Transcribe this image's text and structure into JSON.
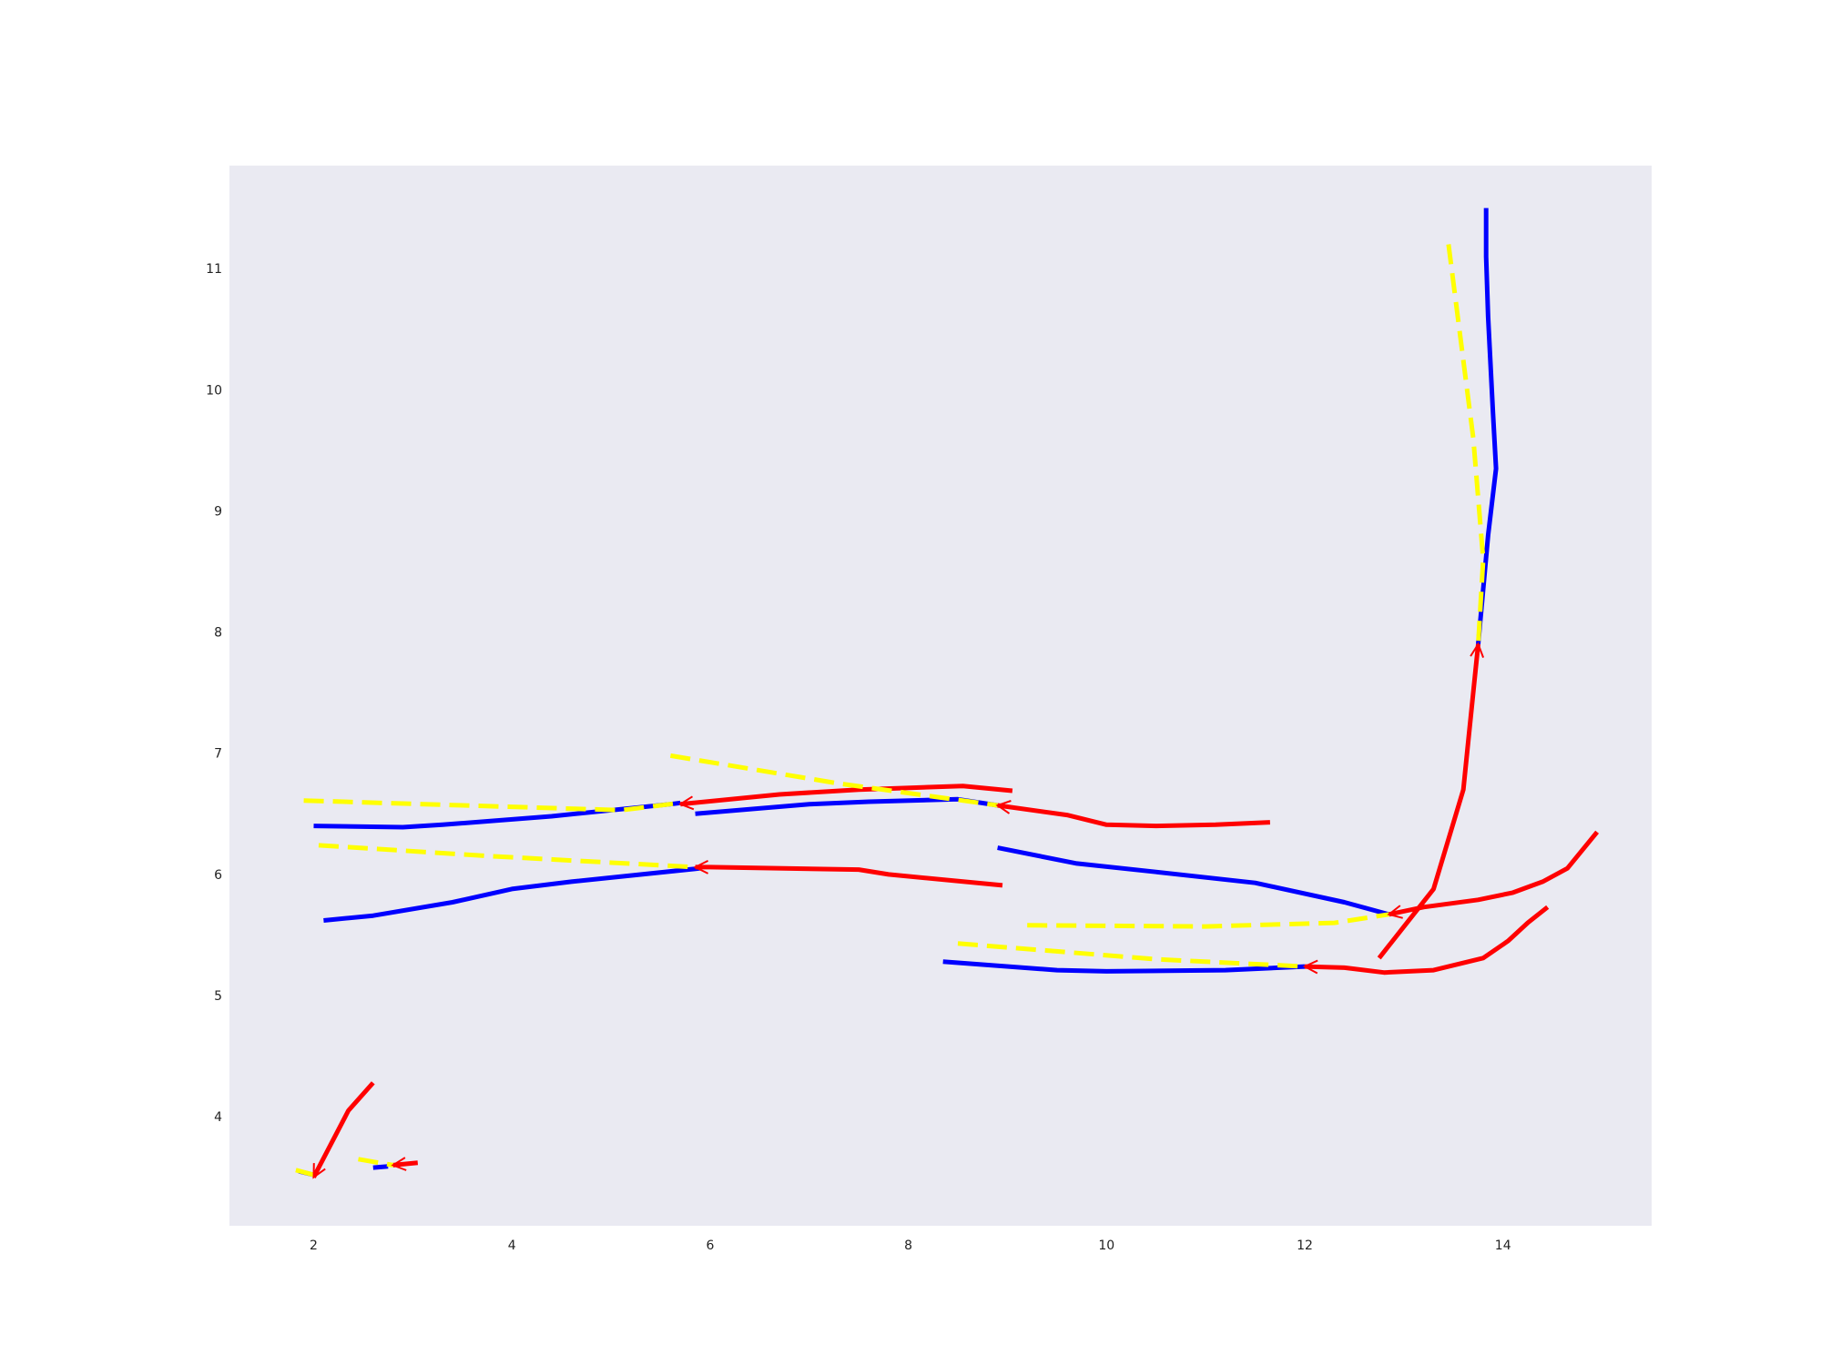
{
  "chart_data": {
    "type": "line",
    "title": "",
    "xlabel": "",
    "ylabel": "",
    "xlim": [
      1.15,
      15.5
    ],
    "ylim": [
      3.1,
      11.85
    ],
    "grid": false,
    "legend": "none",
    "background": "#eaeaf2",
    "x_ticks": [
      2,
      4,
      6,
      8,
      10,
      12,
      14
    ],
    "y_ticks": [
      4,
      5,
      6,
      7,
      8,
      9,
      10,
      11
    ],
    "series": [
      {
        "style": "blue-solid",
        "color": "#0000ff",
        "dashed": false,
        "arrow": false,
        "points": [
          [
            2.0,
            6.4
          ],
          [
            2.9,
            6.39
          ],
          [
            3.3,
            6.41
          ],
          [
            4.4,
            6.48
          ],
          [
            5.6,
            6.58
          ],
          [
            5.7,
            6.59
          ]
        ]
      },
      {
        "style": "blue-solid",
        "color": "#0000ff",
        "dashed": false,
        "arrow": false,
        "points": [
          [
            5.85,
            6.5
          ],
          [
            7.0,
            6.58
          ],
          [
            7.6,
            6.6
          ],
          [
            8.5,
            6.62
          ],
          [
            8.9,
            6.57
          ]
        ]
      },
      {
        "style": "blue-solid",
        "color": "#0000ff",
        "dashed": false,
        "arrow": false,
        "points": [
          [
            2.1,
            5.62
          ],
          [
            2.6,
            5.66
          ],
          [
            3.4,
            5.77
          ],
          [
            4.0,
            5.88
          ],
          [
            4.6,
            5.94
          ],
          [
            5.9,
            6.05
          ]
        ]
      },
      {
        "style": "blue-solid",
        "color": "#0000ff",
        "dashed": false,
        "arrow": false,
        "points": [
          [
            8.9,
            6.22
          ],
          [
            9.7,
            6.09
          ],
          [
            10.5,
            6.02
          ],
          [
            11.5,
            5.93
          ],
          [
            12.4,
            5.77
          ],
          [
            12.85,
            5.67
          ]
        ]
      },
      {
        "style": "blue-solid",
        "color": "#0000ff",
        "dashed": false,
        "arrow": false,
        "points": [
          [
            8.35,
            5.28
          ],
          [
            9.5,
            5.21
          ],
          [
            10.0,
            5.2
          ],
          [
            11.2,
            5.21
          ],
          [
            12.0,
            5.24
          ]
        ]
      },
      {
        "style": "blue-solid",
        "color": "#0000ff",
        "dashed": false,
        "arrow": false,
        "points": [
          [
            13.75,
            7.9
          ],
          [
            13.85,
            8.8
          ],
          [
            13.93,
            9.35
          ],
          [
            13.9,
            9.8
          ],
          [
            13.85,
            10.6
          ],
          [
            13.83,
            11.1
          ],
          [
            13.83,
            11.5
          ]
        ]
      },
      {
        "style": "blue-solid",
        "color": "#0000ff",
        "dashed": false,
        "arrow": false,
        "points": [
          [
            1.85,
            3.55
          ],
          [
            2.0,
            3.52
          ]
        ]
      },
      {
        "style": "blue-solid",
        "color": "#0000ff",
        "dashed": false,
        "arrow": false,
        "points": [
          [
            2.6,
            3.58
          ],
          [
            2.75,
            3.59
          ]
        ]
      },
      {
        "style": "red-solid",
        "color": "#ff0000",
        "dashed": false,
        "arrow": true,
        "points": [
          [
            9.05,
            6.69
          ],
          [
            8.55,
            6.73
          ],
          [
            7.5,
            6.7
          ],
          [
            6.7,
            6.66
          ],
          [
            5.7,
            6.58
          ]
        ]
      },
      {
        "style": "red-solid",
        "color": "#ff0000",
        "dashed": false,
        "arrow": true,
        "points": [
          [
            11.65,
            6.43
          ],
          [
            11.1,
            6.41
          ],
          [
            10.5,
            6.4
          ],
          [
            10.0,
            6.41
          ],
          [
            9.6,
            6.49
          ],
          [
            8.9,
            6.57
          ]
        ]
      },
      {
        "style": "red-solid",
        "color": "#ff0000",
        "dashed": false,
        "arrow": true,
        "points": [
          [
            8.95,
            5.91
          ],
          [
            7.8,
            6.0
          ],
          [
            7.5,
            6.04
          ],
          [
            6.0,
            6.06
          ],
          [
            5.85,
            6.06
          ]
        ]
      },
      {
        "style": "red-solid",
        "color": "#ff0000",
        "dashed": false,
        "arrow": true,
        "points": [
          [
            14.95,
            6.35
          ],
          [
            14.65,
            6.05
          ],
          [
            14.4,
            5.94
          ],
          [
            14.1,
            5.85
          ],
          [
            13.75,
            5.79
          ],
          [
            13.2,
            5.73
          ],
          [
            12.85,
            5.67
          ]
        ]
      },
      {
        "style": "red-solid",
        "color": "#ff0000",
        "dashed": false,
        "arrow": true,
        "points": [
          [
            14.45,
            5.73
          ],
          [
            14.25,
            5.6
          ],
          [
            14.05,
            5.45
          ],
          [
            13.8,
            5.31
          ],
          [
            13.3,
            5.21
          ],
          [
            12.8,
            5.19
          ],
          [
            12.4,
            5.23
          ],
          [
            12.0,
            5.24
          ]
        ]
      },
      {
        "style": "red-solid",
        "color": "#ff0000",
        "dashed": false,
        "arrow": true,
        "points": [
          [
            12.75,
            5.31
          ],
          [
            13.3,
            5.88
          ],
          [
            13.6,
            6.7
          ],
          [
            13.65,
            7.1
          ],
          [
            13.75,
            7.9
          ]
        ]
      },
      {
        "style": "red-solid",
        "color": "#ff0000",
        "dashed": false,
        "arrow": true,
        "points": [
          [
            2.6,
            4.28
          ],
          [
            2.35,
            4.05
          ],
          [
            2.0,
            3.5
          ]
        ]
      },
      {
        "style": "red-solid",
        "color": "#ff0000",
        "dashed": false,
        "arrow": true,
        "points": [
          [
            3.05,
            3.62
          ],
          [
            2.8,
            3.6
          ]
        ]
      },
      {
        "style": "yellow-dashed",
        "color": "#ffff00",
        "dashed": true,
        "arrow": false,
        "points": [
          [
            1.9,
            6.61
          ],
          [
            3.5,
            6.57
          ],
          [
            5.1,
            6.53
          ],
          [
            5.7,
            6.59
          ]
        ]
      },
      {
        "style": "yellow-dashed",
        "color": "#ffff00",
        "dashed": true,
        "arrow": false,
        "points": [
          [
            5.6,
            6.98
          ],
          [
            7.3,
            6.75
          ],
          [
            8.9,
            6.57
          ]
        ]
      },
      {
        "style": "yellow-dashed",
        "color": "#ffff00",
        "dashed": true,
        "arrow": false,
        "points": [
          [
            2.05,
            6.24
          ],
          [
            3.8,
            6.15
          ],
          [
            5.85,
            6.06
          ]
        ]
      },
      {
        "style": "yellow-dashed",
        "color": "#ffff00",
        "dashed": true,
        "arrow": false,
        "points": [
          [
            9.2,
            5.58
          ],
          [
            11.0,
            5.57
          ],
          [
            12.3,
            5.6
          ],
          [
            12.85,
            5.67
          ]
        ]
      },
      {
        "style": "yellow-dashed",
        "color": "#ffff00",
        "dashed": true,
        "arrow": false,
        "points": [
          [
            8.5,
            5.43
          ],
          [
            10.5,
            5.3
          ],
          [
            12.0,
            5.24
          ]
        ]
      },
      {
        "style": "yellow-dashed",
        "color": "#ffff00",
        "dashed": true,
        "arrow": false,
        "points": [
          [
            13.45,
            11.2
          ],
          [
            13.7,
            9.6
          ],
          [
            13.8,
            8.6
          ],
          [
            13.75,
            7.9
          ]
        ]
      },
      {
        "style": "yellow-dashed",
        "color": "#ffff00",
        "dashed": true,
        "arrow": false,
        "points": [
          [
            1.82,
            3.56
          ],
          [
            2.0,
            3.52
          ]
        ]
      },
      {
        "style": "yellow-dashed",
        "color": "#ffff00",
        "dashed": true,
        "arrow": false,
        "points": [
          [
            2.45,
            3.65
          ],
          [
            2.8,
            3.6
          ]
        ]
      }
    ]
  }
}
